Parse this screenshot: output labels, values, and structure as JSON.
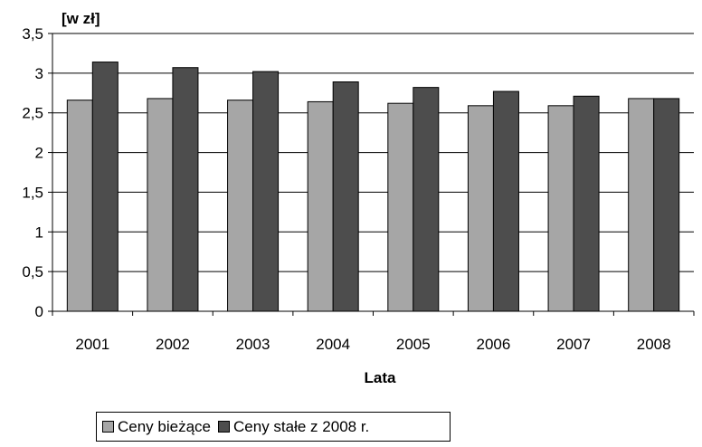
{
  "chart_data": {
    "type": "bar",
    "unit_label": "[w zł]",
    "xlabel": "Lata",
    "ylabel": "",
    "ylim": [
      0,
      3.5
    ],
    "yticks": [
      0,
      0.5,
      1,
      1.5,
      2,
      2.5,
      3,
      3.5
    ],
    "ytick_labels": [
      "0",
      "0,5",
      "1",
      "1,5",
      "2",
      "2,5",
      "3",
      "3,5"
    ],
    "categories": [
      "2001",
      "2002",
      "2003",
      "2004",
      "2005",
      "2006",
      "2007",
      "2008"
    ],
    "grid": true,
    "legend_position": "bottom",
    "series": [
      {
        "name": "Ceny bieżące",
        "color": "#a6a6a6",
        "values": [
          2.66,
          2.68,
          2.66,
          2.64,
          2.62,
          2.59,
          2.59,
          2.68
        ]
      },
      {
        "name": "Ceny stałe z 2008 r.",
        "color": "#4d4d4d",
        "values": [
          3.14,
          3.07,
          3.02,
          2.89,
          2.82,
          2.77,
          2.71,
          2.68
        ]
      }
    ]
  }
}
